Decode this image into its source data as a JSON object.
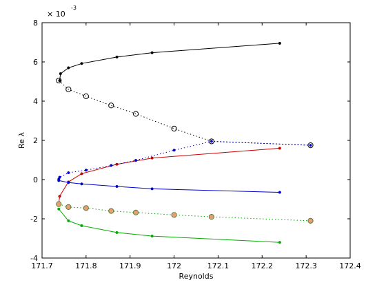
{
  "chart_data": {
    "type": "line",
    "title": "",
    "xlabel": "Reynolds",
    "ylabel": "Re λ",
    "xlim": [
      171.7,
      172.4
    ],
    "ylim": [
      -4,
      8
    ],
    "y_multiplier_label": {
      "base": "× 10",
      "exponent": "-3"
    },
    "x_ticks": [
      "171.7",
      "171.8",
      "171.9",
      "172",
      "172.1",
      "172.2",
      "172.3",
      "172.4"
    ],
    "x_tick_values": [
      171.7,
      171.8,
      171.9,
      172.0,
      172.1,
      172.2,
      172.3,
      172.4
    ],
    "y_ticks": [
      "-4",
      "-2",
      "0",
      "2",
      "4",
      "6",
      "8"
    ],
    "y_tick_values": [
      -4,
      -2,
      0,
      2,
      4,
      6,
      8
    ],
    "grid": false,
    "legend": false,
    "series": [
      {
        "color": "#000000",
        "line": "solid",
        "marker": "dot",
        "points": [
          [
            171.74,
            5.05
          ],
          [
            171.742,
            5.4
          ],
          [
            171.76,
            5.7
          ],
          [
            171.79,
            5.92
          ],
          [
            171.87,
            6.25
          ],
          [
            171.95,
            6.47
          ],
          [
            172.24,
            6.95
          ]
        ]
      },
      {
        "color": "#000000",
        "line": "dotted",
        "marker": "circle",
        "points": [
          [
            171.738,
            5.05
          ],
          [
            171.76,
            4.6
          ],
          [
            171.8,
            4.25
          ],
          [
            171.857,
            3.78
          ],
          [
            171.913,
            3.35
          ],
          [
            172.0,
            2.6
          ],
          [
            172.085,
            1.95
          ],
          [
            172.31,
            1.75
          ]
        ]
      },
      {
        "color": "#cc0000",
        "line": "solid",
        "marker": "dot",
        "points": [
          [
            171.738,
            -1.25
          ],
          [
            171.74,
            -0.85
          ],
          [
            171.76,
            -0.12
          ],
          [
            171.79,
            0.3
          ],
          [
            171.87,
            0.78
          ],
          [
            171.95,
            1.1
          ],
          [
            172.24,
            1.6
          ]
        ]
      },
      {
        "color": "#0000cc",
        "line": "dotted",
        "marker": "dot",
        "points": [
          [
            171.738,
            0.02
          ],
          [
            171.74,
            0.12
          ],
          [
            171.76,
            0.35
          ],
          [
            171.8,
            0.48
          ],
          [
            171.857,
            0.72
          ],
          [
            171.913,
            0.98
          ],
          [
            172.0,
            1.5
          ],
          [
            172.085,
            1.95
          ],
          [
            172.31,
            1.75
          ]
        ]
      },
      {
        "color": "#0000cc",
        "line": "solid",
        "marker": "dot",
        "points": [
          [
            171.738,
            -0.05
          ],
          [
            171.76,
            -0.15
          ],
          [
            171.79,
            -0.22
          ],
          [
            171.87,
            -0.35
          ],
          [
            171.95,
            -0.47
          ],
          [
            172.24,
            -0.65
          ]
        ]
      },
      {
        "color": "#00aa00",
        "line": "dotted",
        "marker": "circle-filled-orange",
        "points": [
          [
            171.738,
            -1.25
          ],
          [
            171.76,
            -1.4
          ],
          [
            171.8,
            -1.45
          ],
          [
            171.857,
            -1.6
          ],
          [
            171.913,
            -1.68
          ],
          [
            172.0,
            -1.8
          ],
          [
            172.085,
            -1.9
          ],
          [
            172.31,
            -2.1
          ]
        ]
      },
      {
        "color": "#00aa00",
        "line": "solid",
        "marker": "dot",
        "points": [
          [
            171.738,
            -1.5
          ],
          [
            171.76,
            -2.1
          ],
          [
            171.79,
            -2.35
          ],
          [
            171.87,
            -2.7
          ],
          [
            171.95,
            -2.88
          ],
          [
            172.24,
            -3.2
          ]
        ]
      }
    ]
  }
}
